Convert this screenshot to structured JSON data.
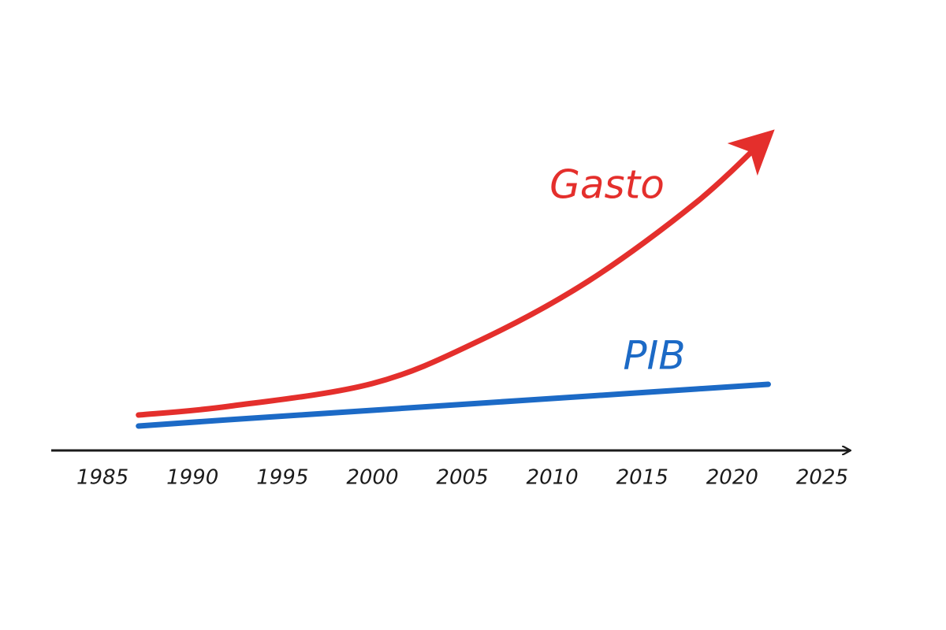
{
  "chart_data": {
    "type": "line",
    "x": [
      1987,
      1992,
      2000,
      2006,
      2012,
      2018,
      2022
    ],
    "series": [
      {
        "name": "Gasto",
        "color": "#e42f2c",
        "values": [
          45,
          56,
          85,
          140,
          215,
          315,
          400
        ]
      },
      {
        "name": "PIB",
        "color": "#1c6ac6",
        "values": [
          31,
          39,
          51,
          60,
          69,
          78,
          84
        ]
      }
    ],
    "xlim": [
      1982,
      2027
    ],
    "xticks": [
      1985,
      1990,
      1995,
      2000,
      2005,
      2010,
      2015,
      2020,
      2025
    ],
    "ylim": [
      0,
      450
    ],
    "grid": false
  }
}
